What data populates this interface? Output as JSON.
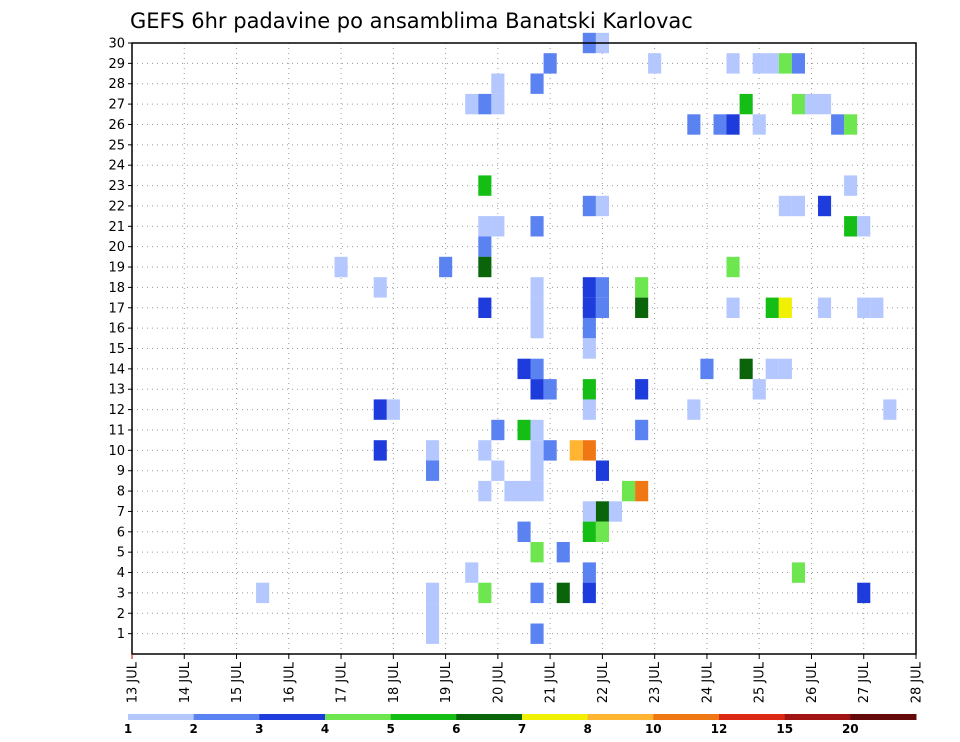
{
  "chart_data": {
    "type": "heatmap",
    "title": "GEFS 6hr padavine po ansamblima Banatski Karlovac",
    "xlabel": "",
    "ylabel": "",
    "x_ticks": [
      "13 JUL",
      "14 JUL",
      "15 JUL",
      "16 JUL",
      "17 JUL",
      "18 JUL",
      "19 JUL",
      "20 JUL",
      "21 JUL",
      "22 JUL",
      "23 JUL",
      "24 JUL",
      "25 JUL",
      "26 JUL",
      "27 JUL",
      "28 JUL"
    ],
    "y_ticks": [
      1,
      2,
      3,
      4,
      5,
      6,
      7,
      8,
      9,
      10,
      11,
      12,
      13,
      14,
      15,
      16,
      17,
      18,
      19,
      20,
      21,
      22,
      23,
      24,
      25,
      26,
      27,
      28,
      29,
      30
    ],
    "xlim": [
      13,
      28
    ],
    "ylim": [
      0,
      30
    ],
    "grid": true,
    "colorbar": {
      "labels": [
        "1",
        "2",
        "3",
        "4",
        "5",
        "6",
        "7",
        "8",
        "10",
        "12",
        "15",
        "20"
      ],
      "colors": [
        "#b4c8ff",
        "#5a82f0",
        "#1e3cdc",
        "#6ee650",
        "#14be14",
        "#0a640a",
        "#f0f000",
        "#ffb432",
        "#f07814",
        "#dc2814",
        "#a01414",
        "#640a0a"
      ]
    },
    "series": [
      {
        "x": 21.75,
        "y": 30,
        "c": 2
      },
      {
        "x": 22,
        "y": 30,
        "c": 1
      },
      {
        "x": 21.0,
        "y": 29,
        "c": 2
      },
      {
        "x": 23.0,
        "y": 29,
        "c": 1
      },
      {
        "x": 24.5,
        "y": 29,
        "c": 1
      },
      {
        "x": 25.0,
        "y": 29,
        "c": 1
      },
      {
        "x": 25.25,
        "y": 29,
        "c": 1
      },
      {
        "x": 25.5,
        "y": 29,
        "c": 4
      },
      {
        "x": 25.75,
        "y": 29,
        "c": 2
      },
      {
        "x": 20.0,
        "y": 28,
        "c": 1
      },
      {
        "x": 20.75,
        "y": 28,
        "c": 2
      },
      {
        "x": 19.5,
        "y": 27,
        "c": 1
      },
      {
        "x": 19.75,
        "y": 27,
        "c": 2
      },
      {
        "x": 20.0,
        "y": 27,
        "c": 1
      },
      {
        "x": 24.75,
        "y": 27,
        "c": 5
      },
      {
        "x": 25.75,
        "y": 27,
        "c": 4
      },
      {
        "x": 26.0,
        "y": 27,
        "c": 1
      },
      {
        "x": 26.25,
        "y": 27,
        "c": 1
      },
      {
        "x": 23.75,
        "y": 26,
        "c": 2
      },
      {
        "x": 24.25,
        "y": 26,
        "c": 2
      },
      {
        "x": 24.5,
        "y": 26,
        "c": 3
      },
      {
        "x": 25.0,
        "y": 26,
        "c": 1
      },
      {
        "x": 26.5,
        "y": 26,
        "c": 2
      },
      {
        "x": 26.75,
        "y": 26,
        "c": 4
      },
      {
        "x": 19.75,
        "y": 23,
        "c": 5
      },
      {
        "x": 26.75,
        "y": 23,
        "c": 1
      },
      {
        "x": 21.75,
        "y": 22,
        "c": 2
      },
      {
        "x": 22.0,
        "y": 22,
        "c": 1
      },
      {
        "x": 25.5,
        "y": 22,
        "c": 1
      },
      {
        "x": 25.75,
        "y": 22,
        "c": 1
      },
      {
        "x": 26.25,
        "y": 22,
        "c": 3
      },
      {
        "x": 19.75,
        "y": 21,
        "c": 1
      },
      {
        "x": 20.0,
        "y": 21,
        "c": 1
      },
      {
        "x": 20.75,
        "y": 21,
        "c": 2
      },
      {
        "x": 26.75,
        "y": 21,
        "c": 5
      },
      {
        "x": 27.0,
        "y": 21,
        "c": 1
      },
      {
        "x": 19.75,
        "y": 20,
        "c": 2
      },
      {
        "x": 17.0,
        "y": 19,
        "c": 1
      },
      {
        "x": 19.0,
        "y": 19,
        "c": 2
      },
      {
        "x": 19.75,
        "y": 19,
        "c": 6
      },
      {
        "x": 24.5,
        "y": 19,
        "c": 4
      },
      {
        "x": 17.75,
        "y": 18,
        "c": 1
      },
      {
        "x": 20.75,
        "y": 18,
        "c": 1
      },
      {
        "x": 21.75,
        "y": 18,
        "c": 3
      },
      {
        "x": 22.0,
        "y": 18,
        "c": 2
      },
      {
        "x": 22.75,
        "y": 18,
        "c": 4
      },
      {
        "x": 19.75,
        "y": 17,
        "c": 3
      },
      {
        "x": 20.75,
        "y": 17,
        "c": 1
      },
      {
        "x": 21.75,
        "y": 17,
        "c": 3
      },
      {
        "x": 22.0,
        "y": 17,
        "c": 2
      },
      {
        "x": 22.75,
        "y": 17,
        "c": 6
      },
      {
        "x": 24.5,
        "y": 17,
        "c": 1
      },
      {
        "x": 25.25,
        "y": 17,
        "c": 5
      },
      {
        "x": 25.5,
        "y": 17,
        "c": 7
      },
      {
        "x": 26.25,
        "y": 17,
        "c": 1
      },
      {
        "x": 27.0,
        "y": 17,
        "c": 1
      },
      {
        "x": 27.25,
        "y": 17,
        "c": 1
      },
      {
        "x": 20.75,
        "y": 16,
        "c": 1
      },
      {
        "x": 21.75,
        "y": 16,
        "c": 2
      },
      {
        "x": 21.75,
        "y": 15,
        "c": 1
      },
      {
        "x": 20.5,
        "y": 14,
        "c": 3
      },
      {
        "x": 20.75,
        "y": 14,
        "c": 2
      },
      {
        "x": 24.0,
        "y": 14,
        "c": 2
      },
      {
        "x": 24.75,
        "y": 14,
        "c": 6
      },
      {
        "x": 25.25,
        "y": 14,
        "c": 1
      },
      {
        "x": 25.5,
        "y": 14,
        "c": 1
      },
      {
        "x": 20.75,
        "y": 13,
        "c": 3
      },
      {
        "x": 21.0,
        "y": 13,
        "c": 2
      },
      {
        "x": 21.75,
        "y": 13,
        "c": 5
      },
      {
        "x": 22.75,
        "y": 13,
        "c": 3
      },
      {
        "x": 25.0,
        "y": 13,
        "c": 1
      },
      {
        "x": 17.75,
        "y": 12,
        "c": 3
      },
      {
        "x": 18.0,
        "y": 12,
        "c": 1
      },
      {
        "x": 21.75,
        "y": 12,
        "c": 1
      },
      {
        "x": 23.75,
        "y": 12,
        "c": 1
      },
      {
        "x": 27.5,
        "y": 12,
        "c": 1
      },
      {
        "x": 20.0,
        "y": 11,
        "c": 2
      },
      {
        "x": 20.5,
        "y": 11,
        "c": 5
      },
      {
        "x": 20.75,
        "y": 11,
        "c": 1
      },
      {
        "x": 22.75,
        "y": 11,
        "c": 2
      },
      {
        "x": 17.75,
        "y": 10,
        "c": 3
      },
      {
        "x": 18.75,
        "y": 10,
        "c": 1
      },
      {
        "x": 19.75,
        "y": 10,
        "c": 1
      },
      {
        "x": 20.75,
        "y": 10,
        "c": 1
      },
      {
        "x": 21.0,
        "y": 10,
        "c": 2
      },
      {
        "x": 21.5,
        "y": 10,
        "c": 8
      },
      {
        "x": 21.75,
        "y": 10,
        "c": 9
      },
      {
        "x": 18.75,
        "y": 9,
        "c": 2
      },
      {
        "x": 20.0,
        "y": 9,
        "c": 1
      },
      {
        "x": 20.75,
        "y": 9,
        "c": 1
      },
      {
        "x": 22.0,
        "y": 9,
        "c": 3
      },
      {
        "x": 19.75,
        "y": 8,
        "c": 1
      },
      {
        "x": 20.25,
        "y": 8,
        "c": 1
      },
      {
        "x": 20.5,
        "y": 8,
        "c": 1
      },
      {
        "x": 20.75,
        "y": 8,
        "c": 1
      },
      {
        "x": 22.5,
        "y": 8,
        "c": 4
      },
      {
        "x": 22.75,
        "y": 8,
        "c": 9
      },
      {
        "x": 21.75,
        "y": 7,
        "c": 1
      },
      {
        "x": 22.0,
        "y": 7,
        "c": 6
      },
      {
        "x": 22.25,
        "y": 7,
        "c": 1
      },
      {
        "x": 20.5,
        "y": 6,
        "c": 2
      },
      {
        "x": 21.75,
        "y": 6,
        "c": 5
      },
      {
        "x": 22.0,
        "y": 6,
        "c": 4
      },
      {
        "x": 20.75,
        "y": 5,
        "c": 4
      },
      {
        "x": 21.25,
        "y": 5,
        "c": 2
      },
      {
        "x": 19.5,
        "y": 4,
        "c": 1
      },
      {
        "x": 21.75,
        "y": 4,
        "c": 2
      },
      {
        "x": 25.75,
        "y": 4,
        "c": 4
      },
      {
        "x": 15.5,
        "y": 3,
        "c": 1
      },
      {
        "x": 18.75,
        "y": 3,
        "c": 1
      },
      {
        "x": 19.75,
        "y": 3,
        "c": 4
      },
      {
        "x": 20.75,
        "y": 3,
        "c": 2
      },
      {
        "x": 21.25,
        "y": 3,
        "c": 6
      },
      {
        "x": 21.75,
        "y": 3,
        "c": 3
      },
      {
        "x": 27.0,
        "y": 3,
        "c": 3
      },
      {
        "x": 18.75,
        "y": 2,
        "c": 1
      },
      {
        "x": 18.75,
        "y": 1,
        "c": 1
      },
      {
        "x": 20.75,
        "y": 1,
        "c": 2
      }
    ]
  }
}
